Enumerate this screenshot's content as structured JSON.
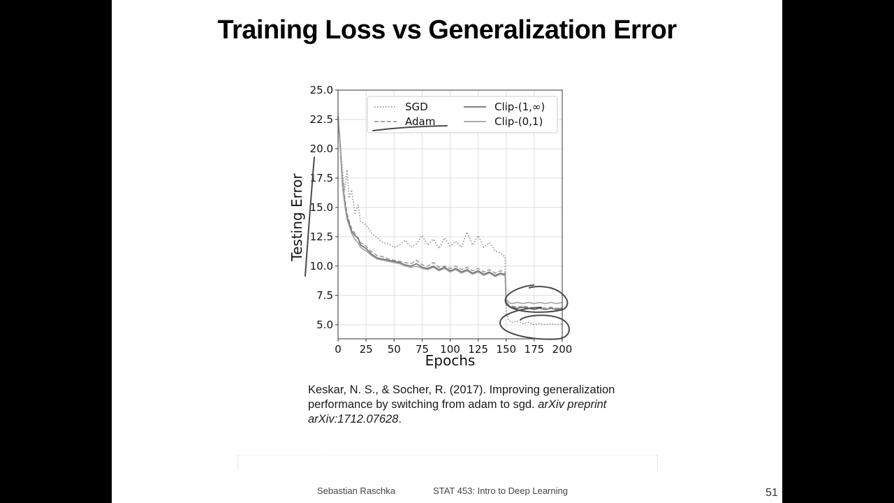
{
  "slide": {
    "title": "Training Loss vs Generalization Error",
    "citation": {
      "plain": "Keskar, N. S., & Socher, R. (2017). Improving generalization performance by switching from adam to sgd.",
      "italic": "arXiv preprint arXiv:1712.07628",
      "end": "."
    },
    "footer": {
      "author": "Sebastian Raschka",
      "course": "STAT 453: Intro to Deep Learning",
      "page_number": "51"
    }
  },
  "chart_data": {
    "type": "line",
    "xlabel": "Epochs",
    "ylabel": "Testing Error",
    "xlim": [
      0,
      200
    ],
    "ylim": [
      3.8,
      25.0
    ],
    "x_ticks": [
      0,
      25,
      50,
      75,
      100,
      125,
      150,
      175,
      200
    ],
    "y_ticks": [
      5.0,
      7.5,
      10.0,
      12.5,
      15.0,
      17.5,
      20.0,
      22.5,
      25.0
    ],
    "x_tick_labels": [
      "0",
      "25",
      "50",
      "75",
      "100",
      "125",
      "150",
      "175",
      "200"
    ],
    "y_tick_labels": [
      "5.0",
      "7.5",
      "10.0",
      "12.5",
      "15.0",
      "17.5",
      "20.0",
      "22.5",
      "25.0"
    ],
    "grid": true,
    "legend_position": "top-right",
    "series": [
      {
        "name": "SGD",
        "style": "dotted",
        "color": "#8a8a8a",
        "x": [
          0,
          2,
          4,
          6,
          8,
          10,
          12,
          15,
          18,
          20,
          25,
          30,
          35,
          40,
          45,
          50,
          55,
          60,
          65,
          70,
          75,
          80,
          85,
          90,
          95,
          100,
          105,
          110,
          115,
          120,
          125,
          130,
          135,
          140,
          145,
          149,
          150,
          152,
          155,
          160,
          165,
          170,
          175,
          180,
          185,
          190,
          195,
          200
        ],
        "y": [
          23,
          20.5,
          18.0,
          16.5,
          18.2,
          15.8,
          16.5,
          14.5,
          15.2,
          13.8,
          13.5,
          12.8,
          12.4,
          12.0,
          11.9,
          11.6,
          11.8,
          12.2,
          11.6,
          11.9,
          12.6,
          11.8,
          12.3,
          11.5,
          12.4,
          11.7,
          12.1,
          11.6,
          12.9,
          11.8,
          12.6,
          11.6,
          12.0,
          11.3,
          11.1,
          10.8,
          6.0,
          5.4,
          5.2,
          5.3,
          5.1,
          5.2,
          5.0,
          5.1,
          5.0,
          5.1,
          5.0,
          5.1
        ]
      },
      {
        "name": "Adam",
        "style": "dashed",
        "color": "#9a9a9a",
        "x": [
          0,
          2,
          4,
          6,
          8,
          10,
          12,
          15,
          18,
          20,
          25,
          30,
          35,
          40,
          45,
          50,
          55,
          60,
          65,
          70,
          75,
          80,
          85,
          90,
          95,
          100,
          105,
          110,
          115,
          120,
          125,
          130,
          135,
          140,
          145,
          149,
          150,
          152,
          155,
          160,
          165,
          170,
          175,
          180,
          185,
          190,
          195,
          200
        ],
        "y": [
          22.5,
          20.0,
          17.5,
          15.8,
          14.5,
          13.8,
          13.2,
          12.8,
          12.3,
          12.0,
          11.7,
          11.2,
          10.9,
          10.8,
          10.6,
          10.5,
          10.4,
          10.3,
          10.2,
          10.5,
          10.1,
          10.0,
          10.3,
          9.9,
          10.0,
          9.8,
          10.0,
          9.7,
          9.9,
          9.6,
          9.8,
          9.5,
          9.7,
          9.4,
          9.6,
          9.5,
          7.0,
          6.7,
          6.6,
          6.5,
          6.6,
          6.5,
          6.4,
          6.5,
          6.4,
          6.5,
          6.4,
          6.5
        ]
      },
      {
        "name": "Clip-(1,∞)",
        "style": "solid",
        "color": "#707070",
        "x": [
          0,
          2,
          4,
          6,
          8,
          10,
          12,
          15,
          18,
          20,
          25,
          30,
          35,
          40,
          45,
          50,
          55,
          60,
          65,
          70,
          75,
          80,
          85,
          90,
          95,
          100,
          105,
          110,
          115,
          120,
          125,
          130,
          135,
          140,
          145,
          149,
          150,
          152,
          155,
          160,
          165,
          170,
          175,
          180,
          185,
          190,
          195,
          200
        ],
        "y": [
          22.8,
          20.2,
          17.0,
          15.5,
          14.2,
          13.6,
          13.0,
          12.6,
          12.4,
          11.8,
          11.5,
          11.0,
          10.7,
          10.6,
          10.5,
          10.4,
          10.3,
          10.1,
          10.0,
          10.2,
          9.9,
          9.8,
          10.0,
          9.7,
          9.9,
          9.6,
          9.8,
          9.5,
          9.7,
          9.4,
          9.6,
          9.3,
          9.5,
          9.2,
          9.4,
          9.3,
          6.8,
          6.6,
          6.5,
          6.4,
          6.5,
          6.4,
          6.3,
          6.4,
          6.3,
          6.4,
          6.3,
          6.4
        ]
      },
      {
        "name": "Clip-(0,1)",
        "style": "solid",
        "color": "#a0a0a0",
        "x": [
          0,
          2,
          4,
          6,
          8,
          10,
          12,
          15,
          18,
          20,
          25,
          30,
          35,
          40,
          45,
          50,
          55,
          60,
          65,
          70,
          75,
          80,
          85,
          90,
          95,
          100,
          105,
          110,
          115,
          120,
          125,
          130,
          135,
          140,
          145,
          149,
          150,
          152,
          155,
          160,
          165,
          170,
          175,
          180,
          185,
          190,
          195,
          200
        ],
        "y": [
          22.6,
          20.0,
          16.8,
          15.2,
          14.0,
          13.4,
          12.8,
          12.3,
          12.0,
          11.6,
          11.3,
          10.9,
          10.6,
          10.5,
          10.4,
          10.3,
          10.2,
          10.0,
          9.9,
          10.0,
          9.8,
          9.7,
          9.9,
          9.6,
          9.8,
          9.5,
          9.7,
          9.4,
          9.6,
          9.3,
          9.5,
          9.2,
          9.4,
          9.1,
          9.3,
          9.2,
          7.2,
          6.9,
          6.8,
          6.9,
          6.8,
          6.9,
          6.8,
          6.9,
          6.8,
          6.9,
          6.8,
          6.9
        ]
      }
    ]
  }
}
